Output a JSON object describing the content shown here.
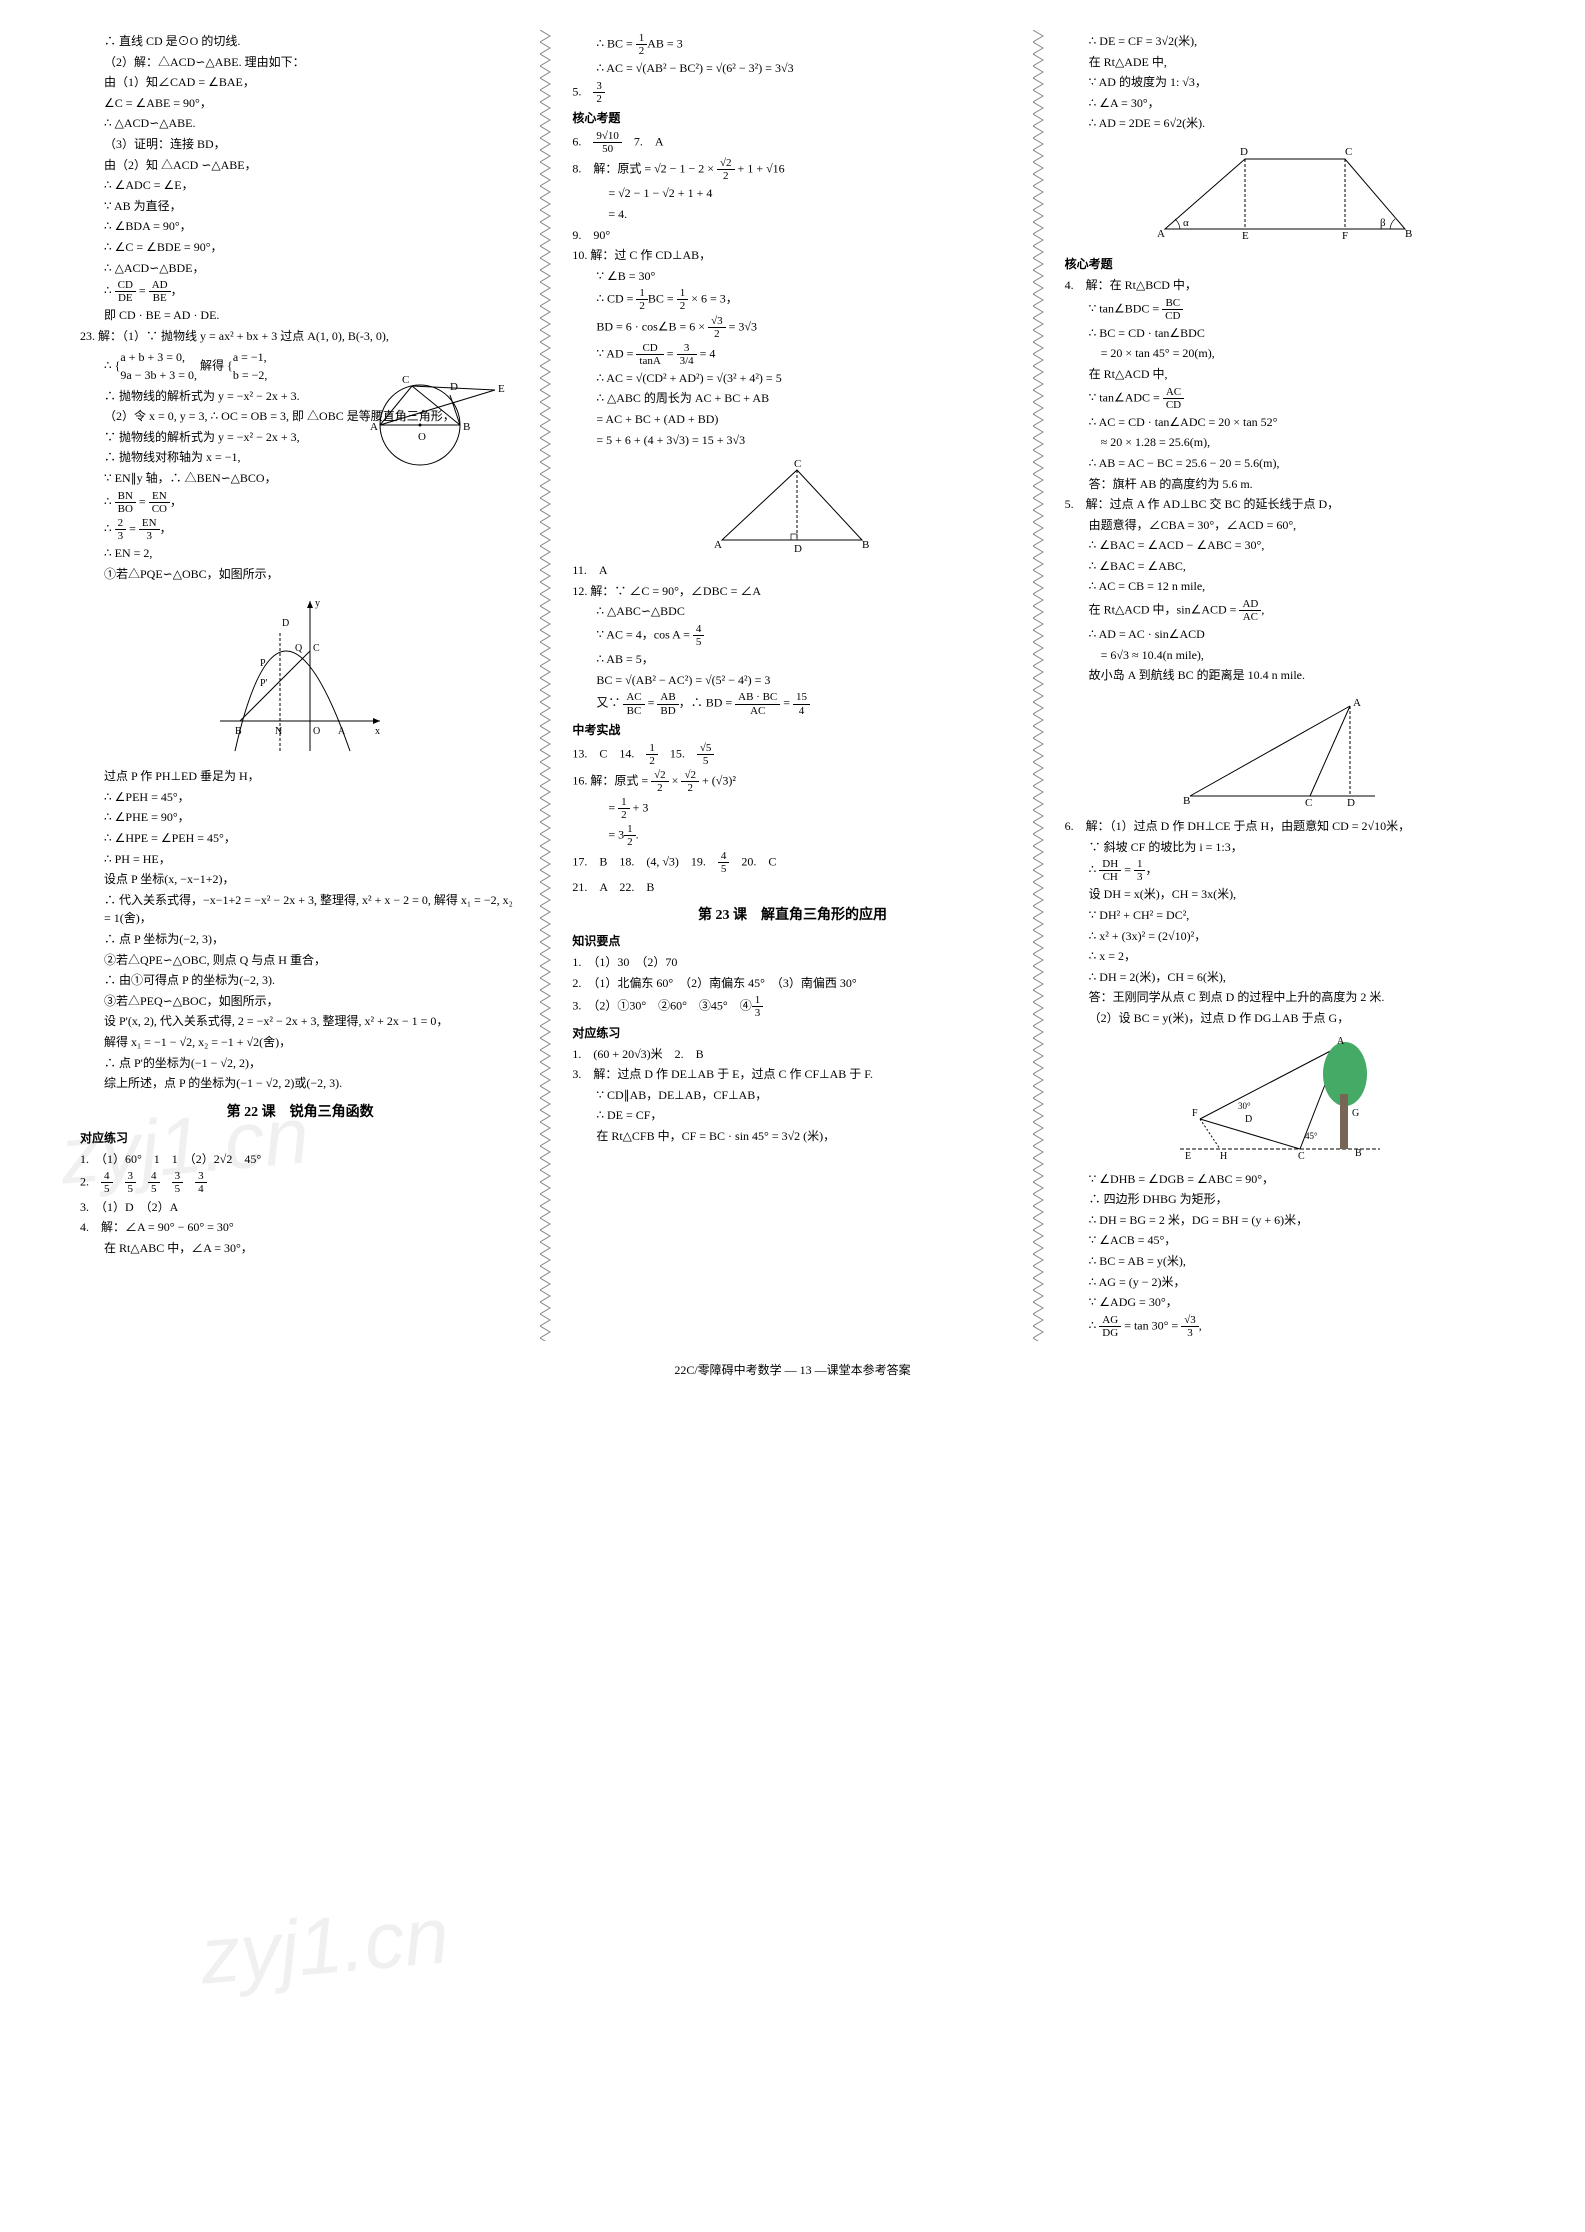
{
  "footer": "22C/零障碍中考数学 — 13 —课堂本参考答案",
  "watermark": "zyj1.cn",
  "col1": {
    "lines": [
      {
        "cls": "indent1",
        "txt": "∴ 直线 CD 是⊙O 的切线."
      },
      {
        "cls": "indent1",
        "txt": "（2）解：△ACD∽△ABE. 理由如下："
      },
      {
        "cls": "indent1",
        "txt": "由（1）知∠CAD = ∠BAE，"
      },
      {
        "cls": "indent1",
        "txt": "∠C = ∠ABE = 90°，"
      },
      {
        "cls": "indent1",
        "txt": "∴ △ACD∽△ABE."
      },
      {
        "cls": "indent1",
        "txt": "（3）证明：连接 BD，"
      },
      {
        "cls": "indent1",
        "txt": "由（2）知 △ACD ∽△ABE，"
      },
      {
        "cls": "indent1",
        "txt": "∴ ∠ADC = ∠E，"
      },
      {
        "cls": "indent1",
        "txt": "∵ AB 为直径，"
      },
      {
        "cls": "indent1",
        "txt": "∴ ∠BDA = 90°，"
      },
      {
        "cls": "indent1",
        "txt": "∴ ∠C = ∠BDE = 90°，"
      },
      {
        "cls": "indent1",
        "txt": "∴ △ACD∽△BDE，"
      },
      {
        "cls": "indent1",
        "html": "∴ <span class='frac'><span class='num'>CD</span><span class='den'>DE</span></span> = <span class='frac'><span class='num'>AD</span><span class='den'>BE</span></span>，"
      },
      {
        "cls": "indent1",
        "txt": "即 CD · BE = AD · DE."
      },
      {
        "cls": "",
        "txt": "23. 解：（1）∵ 抛物线 y = ax² + bx + 3 过点 A(1, 0), B(-3, 0),"
      },
      {
        "cls": "indent1",
        "html": "∴ {<span style='display:inline-block;vertical-align:middle'>a + b + 3 = 0,<br>9a − 3b + 3 = 0,</span> 解得 {<span style='display:inline-block;vertical-align:middle'>a = −1,<br>b = −2,</span>"
      },
      {
        "cls": "indent1",
        "txt": "∴ 抛物线的解析式为 y = −x² − 2x + 3."
      },
      {
        "cls": "indent1",
        "txt": "（2）令 x = 0, y = 3, ∴ OC = OB = 3, 即 △OBC 是等腰直角三角形，"
      },
      {
        "cls": "indent1",
        "txt": "∵ 抛物线的解析式为 y = −x² − 2x + 3,"
      },
      {
        "cls": "indent1",
        "txt": "∴ 抛物线对称轴为 x = −1,"
      },
      {
        "cls": "indent1",
        "txt": "∵ EN∥y 轴，∴ △BEN∽△BCO，"
      },
      {
        "cls": "indent1",
        "html": "∴ <span class='frac'><span class='num'>BN</span><span class='den'>BO</span></span> = <span class='frac'><span class='num'>EN</span><span class='den'>CO</span></span>，"
      },
      {
        "cls": "indent1",
        "html": "∴ <span class='frac'><span class='num'>2</span><span class='den'>3</span></span> = <span class='frac'><span class='num'>EN</span><span class='den'>3</span></span>，"
      },
      {
        "cls": "indent1",
        "txt": "∴ EN = 2,"
      },
      {
        "cls": "indent1",
        "txt": "①若△PQE∽△OBC，如图所示，"
      }
    ],
    "diagram1": {
      "type": "circle-triangle",
      "labels": [
        "A",
        "B",
        "C",
        "D",
        "E",
        "O"
      ]
    },
    "diagram2": {
      "type": "parabola",
      "labels": [
        "B",
        "N",
        "O",
        "A",
        "D",
        "Q",
        "C",
        "P",
        "P'",
        "x",
        "y"
      ]
    },
    "lines2": [
      {
        "cls": "indent1",
        "txt": "过点 P 作 PH⊥ED 垂足为 H，"
      },
      {
        "cls": "indent1",
        "txt": "∴ ∠PEH = 45°，"
      },
      {
        "cls": "indent1",
        "txt": "∴ ∠PHE = 90°，"
      },
      {
        "cls": "indent1",
        "txt": "∴ ∠HPE = ∠PEH = 45°，"
      },
      {
        "cls": "indent1",
        "txt": "∴ PH = HE，"
      },
      {
        "cls": "indent1",
        "txt": "设点 P 坐标(x, −x−1+2)，"
      },
      {
        "cls": "indent1",
        "txt": "∴ 代入关系式得，−x−1+2 = −x² − 2x + 3, 整理得, x² + x − 2 = 0, 解得 x₁ = −2, x₂ = 1(舍)，"
      },
      {
        "cls": "indent1",
        "txt": "∴ 点 P 坐标为(−2, 3)，"
      },
      {
        "cls": "indent1",
        "txt": "②若△QPE∽△OBC, 则点 Q 与点 H 重合，"
      },
      {
        "cls": "indent1",
        "txt": "∴ 由①可得点 P 的坐标为(−2, 3)."
      },
      {
        "cls": "indent1",
        "txt": "③若△PEQ∽△BOC，如图所示，"
      },
      {
        "cls": "indent1",
        "txt": "设 P'(x, 2), 代入关系式得, 2 = −x² − 2x + 3, 整理得, x² + 2x − 1 = 0，"
      },
      {
        "cls": "indent1",
        "txt": "解得 x₁ = −1 − √2, x₂ = −1 + √2(舍)，"
      },
      {
        "cls": "indent1",
        "txt": "∴ 点 P'的坐标为(−1 − √2, 2)，"
      },
      {
        "cls": "indent1",
        "txt": "综上所述，点 P 的坐标为(−1 − √2, 2)或(−2, 3)."
      }
    ],
    "section22_title": "第 22 课　锐角三角函数",
    "practice_heading": "对应练习",
    "practice": [
      {
        "txt": "1.　（1）60°　1　1　（2）2√2　45°"
      },
      {
        "html": "2.　<span class='frac'><span class='num'>4</span><span class='den'>5</span></span>　<span class='frac'><span class='num'>3</span><span class='den'>5</span></span>　<span class='frac'><span class='num'>4</span><span class='den'>5</span></span>　<span class='frac'><span class='num'>3</span><span class='den'>5</span></span>　<span class='frac'><span class='num'>3</span><span class='den'>4</span></span>"
      },
      {
        "txt": "3.　（1）D　（2）A"
      },
      {
        "txt": "4.　解：∠A = 90° − 60° = 30°"
      },
      {
        "cls": "indent1",
        "txt": "在 Rt△ABC 中，∠A = 30°，"
      }
    ]
  },
  "col2": {
    "lines": [
      {
        "cls": "indent1",
        "html": "∴ BC = <span class='frac'><span class='num'>1</span><span class='den'>2</span></span>AB = 3"
      },
      {
        "cls": "indent1",
        "txt": "∴ AC = √(AB² − BC²) = √(6² − 3²) = 3√3"
      },
      {
        "cls": "",
        "html": "5.　<span class='frac'><span class='num'>3</span><span class='den'>2</span></span>"
      }
    ],
    "core_heading": "核心考题",
    "core": [
      {
        "html": "6.　<span class='frac'><span class='num'>9√10</span><span class='den'>50</span></span>　7.　A"
      },
      {
        "html": "8.　解：原式 = √2 − 1 − 2 × <span class='frac'><span class='num'>√2</span><span class='den'>2</span></span> + 1 + √16"
      },
      {
        "cls": "indent2",
        "txt": "= √2 − 1 − √2 + 1 + 4"
      },
      {
        "cls": "indent2",
        "txt": "= 4."
      },
      {
        "txt": "9.　90°"
      },
      {
        "txt": "10. 解：过 C 作 CD⊥AB，"
      },
      {
        "cls": "indent1",
        "txt": "∵ ∠B = 30°"
      },
      {
        "cls": "indent1",
        "html": "∴ CD = <span class='frac'><span class='num'>1</span><span class='den'>2</span></span>BC = <span class='frac'><span class='num'>1</span><span class='den'>2</span></span> × 6 = 3，"
      },
      {
        "cls": "indent1",
        "html": "BD = 6 · cos∠B = 6 × <span class='frac'><span class='num'>√3</span><span class='den'>2</span></span> = 3√3"
      },
      {
        "cls": "indent1",
        "html": "∵ AD = <span class='frac'><span class='num'>CD</span><span class='den'>tanA</span></span> = <span class='frac'><span class='num'>3</span><span class='den'>3/4</span></span> = 4"
      },
      {
        "cls": "indent1",
        "txt": "∴ AC = √(CD² + AD²) = √(3² + 4²) = 5"
      },
      {
        "cls": "indent1",
        "txt": "∴ △ABC 的周长为 AC + BC + AB"
      },
      {
        "cls": "indent1",
        "txt": "= AC + BC + (AD + BD)"
      },
      {
        "cls": "indent1",
        "txt": "= 5 + 6 + (4 + 3√3) = 15 + 3√3"
      }
    ],
    "diagram3": {
      "type": "triangle",
      "labels": [
        "A",
        "B",
        "C",
        "D"
      ]
    },
    "lines2": [
      {
        "txt": "11.　A"
      },
      {
        "txt": "12. 解：∵ ∠C = 90°，∠DBC = ∠A"
      },
      {
        "cls": "indent1",
        "txt": "∴ △ABC∽△BDC"
      },
      {
        "cls": "indent1",
        "html": "∵ AC = 4，cos A = <span class='frac'><span class='num'>4</span><span class='den'>5</span></span>"
      },
      {
        "cls": "indent1",
        "txt": "∴ AB = 5，"
      },
      {
        "cls": "indent1",
        "txt": "BC = √(AB² − AC²) = √(5² − 4²) = 3"
      },
      {
        "cls": "indent1",
        "html": "又∵ <span class='frac'><span class='num'>AC</span><span class='den'>BC</span></span> = <span class='frac'><span class='num'>AB</span><span class='den'>BD</span></span>，∴ BD = <span class='frac'><span class='num'>AB · BC</span><span class='den'>AC</span></span> = <span class='frac'><span class='num'>15</span><span class='den'>4</span></span>"
      }
    ],
    "exam_heading": "中考实战",
    "exam": [
      {
        "html": "13.　C　14.　<span class='frac'><span class='num'>1</span><span class='den'>2</span></span>　15.　<span class='frac'><span class='num'>√5</span><span class='den'>5</span></span>"
      },
      {
        "html": "16. 解：原式 = <span class='frac'><span class='num'>√2</span><span class='den'>2</span></span> × <span class='frac'><span class='num'>√2</span><span class='den'>2</span></span> + (√3)²"
      },
      {
        "cls": "indent2",
        "html": "= <span class='frac'><span class='num'>1</span><span class='den'>2</span></span> + 3"
      },
      {
        "cls": "indent2",
        "html": "= 3<span class='frac'><span class='num'>1</span><span class='den'>2</span></span>."
      },
      {
        "html": "17.　B　18.　(4, √3)　19.　<span class='frac'><span class='num'>4</span><span class='den'>5</span></span>　20.　C"
      },
      {
        "txt": "21.　A　22.　B"
      }
    ],
    "section23_title": "第 23 课　解直角三角形的应用",
    "knowledge_heading": "知识要点",
    "knowledge": [
      {
        "txt": "1.　（1）30　（2）70"
      },
      {
        "txt": "2.　（1）北偏东 60°　（2）南偏东 45°　（3）南偏西 30°"
      },
      {
        "html": "3.　（2）①30°　②60°　③45°　④<span class='frac'><span class='num'>1</span><span class='den'>3</span></span>"
      }
    ],
    "practice2_heading": "对应练习",
    "practice2": [
      {
        "txt": "1.　(60 + 20√3)米　2.　B"
      },
      {
        "txt": "3.　解：过点 D 作 DE⊥AB 于 E，过点 C 作 CF⊥AB 于 F."
      },
      {
        "cls": "indent1",
        "txt": "∵ CD∥AB，DE⊥AB，CF⊥AB，"
      },
      {
        "cls": "indent1",
        "txt": "∴ DE = CF，"
      },
      {
        "cls": "indent1",
        "txt": "在 Rt△CFB 中，CF = BC · sin 45° = 3√2 (米)，"
      }
    ]
  },
  "col3": {
    "lines": [
      {
        "cls": "indent1",
        "txt": "∴ DE = CF = 3√2(米),"
      },
      {
        "cls": "indent1",
        "txt": "在 Rt△ADE 中,"
      },
      {
        "cls": "indent1",
        "txt": "∵ AD 的坡度为 1: √3，"
      },
      {
        "cls": "indent1",
        "txt": "∴ ∠A = 30°，"
      },
      {
        "cls": "indent1",
        "txt": "∴ AD = 2DE = 6√2(米)."
      }
    ],
    "diagram4": {
      "type": "trapezoid",
      "labels": [
        "A",
        "B",
        "C",
        "D",
        "E",
        "F",
        "α",
        "β"
      ]
    },
    "core_heading": "核心考题",
    "core": [
      {
        "txt": "4.　解：在 Rt△BCD 中，"
      },
      {
        "cls": "indent1",
        "html": "∵ tan∠BDC = <span class='frac'><span class='num'>BC</span><span class='den'>CD</span></span>"
      },
      {
        "cls": "indent1",
        "txt": "∴ BC = CD · tan∠BDC"
      },
      {
        "cls": "indent2",
        "txt": "= 20 × tan 45° = 20(m),"
      },
      {
        "cls": "indent1",
        "txt": "在 Rt△ACD 中,"
      },
      {
        "cls": "indent1",
        "html": "∵ tan∠ADC = <span class='frac'><span class='num'>AC</span><span class='den'>CD</span></span>"
      },
      {
        "cls": "indent1",
        "txt": "∴ AC = CD · tan∠ADC = 20 × tan 52°"
      },
      {
        "cls": "indent2",
        "txt": "≈ 20 × 1.28 = 25.6(m),"
      },
      {
        "cls": "indent1",
        "txt": "∴ AB = AC − BC = 25.6 − 20 = 5.6(m),"
      },
      {
        "cls": "indent1",
        "txt": "答：旗杆 AB 的高度约为 5.6 m."
      },
      {
        "txt": "5.　解：过点 A 作 AD⊥BC 交 BC 的延长线于点 D，"
      },
      {
        "cls": "indent1",
        "txt": "由题意得，∠CBA = 30°，∠ACD = 60°,"
      },
      {
        "cls": "indent1",
        "txt": "∴ ∠BAC = ∠ACD − ∠ABC = 30°,"
      },
      {
        "cls": "indent1",
        "txt": "∴ ∠BAC = ∠ABC,"
      },
      {
        "cls": "indent1",
        "txt": "∴ AC = CB = 12 n mile,"
      },
      {
        "cls": "indent1",
        "html": "在 Rt△ACD 中，sin∠ACD = <span class='frac'><span class='num'>AD</span><span class='den'>AC</span></span>,"
      },
      {
        "cls": "indent1",
        "txt": "∴ AD = AC · sin∠ACD"
      },
      {
        "cls": "indent2",
        "txt": "= 6√3 ≈ 10.4(n mile),"
      },
      {
        "cls": "indent1",
        "txt": "故小岛 A 到航线 BC 的距离是 10.4 n mile."
      }
    ],
    "diagram5": {
      "type": "triangle-nav",
      "labels": [
        "A",
        "B",
        "C",
        "D"
      ]
    },
    "lines2": [
      {
        "txt": "6.　解：（1）过点 D 作 DH⊥CE 于点 H，由题意知 CD = 2√10米，"
      },
      {
        "cls": "indent1",
        "txt": "∵ 斜坡 CF 的坡比为 i = 1:3，"
      },
      {
        "cls": "indent1",
        "html": "∴ <span class='frac'><span class='num'>DH</span><span class='den'>CH</span></span> = <span class='frac'><span class='num'>1</span><span class='den'>3</span></span>，"
      },
      {
        "cls": "indent1",
        "txt": "设 DH = x(米)，CH = 3x(米),"
      },
      {
        "cls": "indent1",
        "txt": "∵ DH² + CH² = DC²,"
      },
      {
        "cls": "indent1",
        "txt": "∴ x² + (3x)² = (2√10)²，"
      },
      {
        "cls": "indent1",
        "txt": "∴ x = 2，"
      },
      {
        "cls": "indent1",
        "txt": "∴ DH = 2(米)，CH = 6(米),"
      },
      {
        "cls": "indent1",
        "txt": "答：王刚同学从点 C 到点 D 的过程中上升的高度为 2 米."
      },
      {
        "cls": "indent1",
        "txt": "（2）设 BC = y(米)，过点 D 作 DG⊥AB 于点 G，"
      }
    ],
    "diagram6": {
      "type": "slope-tree",
      "labels": [
        "A",
        "B",
        "C",
        "D",
        "E",
        "F",
        "G",
        "H",
        "30°",
        "45°"
      ]
    },
    "lines3": [
      {
        "cls": "indent1",
        "txt": "∵ ∠DHB = ∠DGB = ∠ABC = 90°，"
      },
      {
        "cls": "indent1",
        "txt": "∴ 四边形 DHBG 为矩形，"
      },
      {
        "cls": "indent1",
        "txt": "∴ DH = BG = 2 米，DG = BH = (y + 6)米，"
      },
      {
        "cls": "indent1",
        "txt": "∵ ∠ACB = 45°，"
      },
      {
        "cls": "indent1",
        "txt": "∴ BC = AB = y(米),"
      },
      {
        "cls": "indent1",
        "txt": "∴ AG = (y − 2)米，"
      },
      {
        "cls": "indent1",
        "txt": "∵ ∠ADG = 30°，"
      },
      {
        "cls": "indent1",
        "html": "∴ <span class='frac'><span class='num'>AG</span><span class='den'>DG</span></span> = tan 30° = <span class='frac'><span class='num'>√3</span><span class='den'>3</span></span>,"
      }
    ]
  }
}
